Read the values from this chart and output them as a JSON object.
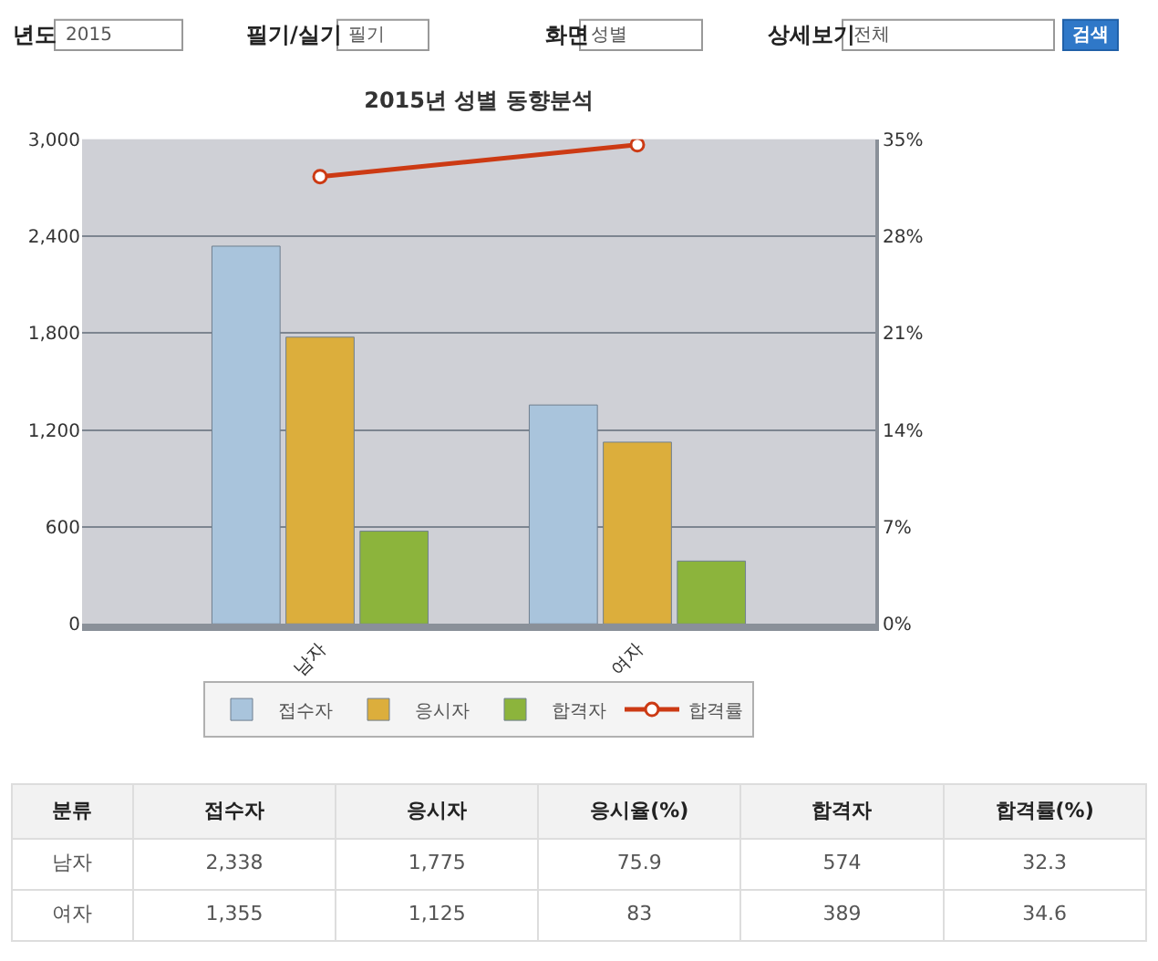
{
  "chart_data": [
    {
      "type": "bar",
      "title": "2015년 성별 동향분석",
      "categories": [
        "남자",
        "여자"
      ],
      "series": [
        {
          "name": "접수자",
          "color": "#a9c4dc",
          "values": [
            2338,
            1355
          ]
        },
        {
          "name": "응시자",
          "color": "#dcae3c",
          "values": [
            1775,
            1125
          ]
        },
        {
          "name": "합격자",
          "color": "#8cb43c",
          "values": [
            574,
            389
          ]
        },
        {
          "name": "합격률",
          "type": "line",
          "axis": "y2",
          "color": "#cc3a14",
          "marker": "circle",
          "values": [
            32.3,
            34.6
          ]
        }
      ],
      "ylim": [
        0,
        3000
      ],
      "yticks": [
        0,
        600,
        {
          "value": 1200,
          "label": "1,200"
        },
        {
          "value": 1800,
          "label": "1,800"
        },
        {
          "value": 2400,
          "label": "2,400"
        },
        {
          "value": 3000,
          "label": "3,000"
        }
      ],
      "y2lim": [
        0,
        35
      ],
      "y2ticks": [
        {
          "value": 0,
          "label": "0%"
        },
        {
          "value": 7,
          "label": "7%"
        },
        {
          "value": 14,
          "label": "14%"
        },
        {
          "value": 21,
          "label": "21%"
        },
        {
          "value": 28,
          "label": "28%"
        },
        {
          "value": 35,
          "label": "35%"
        }
      ],
      "grid": "y",
      "legend": "bottom",
      "annotations": [
        "년도",
        "2015",
        "필기/실기",
        "필기",
        "화면",
        "성별",
        "상세보기",
        "전체",
        "검색"
      ]
    },
    {
      "type": "other",
      "xlabel": "분류",
      "categories": [
        "남자",
        "여자"
      ],
      "series": [
        {
          "name": "접수자",
          "values": [
            2338,
            1355
          ],
          "value_labels": [
            "2,338",
            "1,355"
          ]
        },
        {
          "name": "응시자",
          "values": [
            1775,
            1125
          ],
          "value_labels": [
            "1,775",
            "1,125"
          ]
        },
        {
          "name": "응시율(%)",
          "values": [
            75.9,
            83
          ]
        },
        {
          "name": "합격자",
          "values": [
            574,
            389
          ]
        },
        {
          "name": "합격률(%)",
          "values": [
            32.3,
            34.6
          ]
        }
      ],
      "data_labels": true
    }
  ]
}
